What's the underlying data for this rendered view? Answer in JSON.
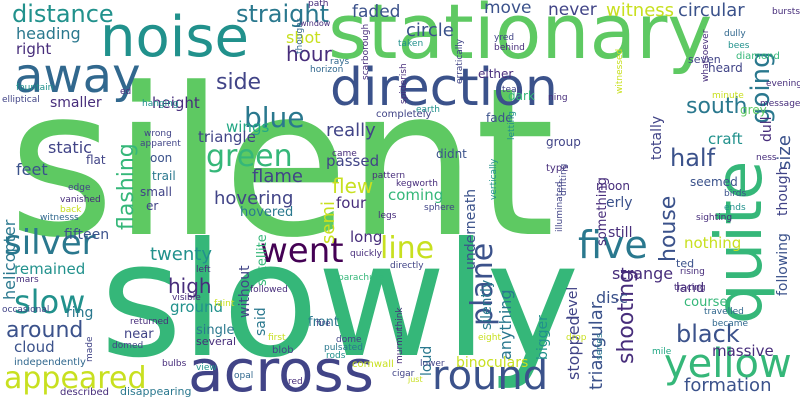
{
  "colors": {
    "green_light": "#5ec962",
    "green_mid": "#35b779",
    "teal": "#21918c",
    "teal_blue": "#2a788e",
    "blue": "#31688e",
    "indigo": "#3b528b",
    "navy": "#414487",
    "purple": "#472d7b",
    "purple_dark": "#440154",
    "yellow": "#c8e020",
    "yellow_bright": "#fde725",
    "green_aqua": "#22a884",
    "lime": "#90d743"
  },
  "words": {
    "silent": "silent",
    "slowly": "slowly",
    "stationary": "stationary",
    "noise": "noise",
    "away": "away",
    "direction": "direction",
    "quite": "quite",
    "across": "across",
    "round": "round",
    "yellow": "yellow",
    "appeared": "appeared",
    "went": "went",
    "five": "five",
    "silver": "silver",
    "green": "green",
    "blue": "blue",
    "slow": "slow",
    "plane": "plane",
    "distance": "distance",
    "straight": "straight",
    "hour": "hour",
    "side": "side",
    "south": "south",
    "going": "going",
    "half": "half",
    "house": "house",
    "black": "black",
    "formation": "formation",
    "line": "line",
    "flashing": "flashing",
    "around": "around",
    "high": "high",
    "twenty": "twenty",
    "shooting": "shooting",
    "triangular": "triangular",
    "flame": "flame",
    "really": "really",
    "flew": "flew",
    "hovering": "hovering",
    "witness": "witness",
    "circular": "circular",
    "circle": "circle",
    "faded": "faded",
    "move": "move",
    "never": "never",
    "heading": "heading",
    "right": "right",
    "smaller": "smaller",
    "shot": "shot",
    "wings": "wings",
    "height": "height",
    "triangle": "triangle",
    "static": "static",
    "feet": "feet",
    "helicopter": "helicopter",
    "remained": "remained",
    "fifteen": "fifteen",
    "ring": "ring",
    "cloud": "cloud",
    "ground": "ground",
    "strange": "strange",
    "disc": "disc",
    "nothing": "nothing",
    "size": "size",
    "dull": "dull",
    "craft": "craft",
    "coming": "coming",
    "passed": "passed",
    "four": "four",
    "long": "long",
    "still": "still",
    "anything": "anything",
    "bigger": "bigger",
    "stopped": "stopped",
    "loud": "loud",
    "massive": "massive",
    "course": "course",
    "binoculars": "binoculars",
    "land": "land",
    "front": "front",
    "single": "single",
    "near": "near",
    "several": "several",
    "hovered": "hovered",
    "small": "small",
    "trail": "trail",
    "flat": "flat",
    "moon": "moon",
    "seemed": "seemed",
    "erly": "erly",
    "ted": "ted",
    "semi": "semi",
    "oon": "oon",
    "er": "er",
    "said": "said",
    "without": "without",
    "satellite": "satellite",
    "underneath": "underneath",
    "something": "something",
    "silently": "silently",
    "level": "level",
    "group": "group",
    "didnt": "didnt",
    "fade": "fade",
    "totally": "totally",
    "house2": "heard",
    "dark": "dark",
    "either": "either",
    "seven": "seven",
    "diamond": "diamond",
    "bees": "bees",
    "dully": "dully",
    "whatsoever": "whatsoever",
    "bursts": "bursts",
    "evening": "evening",
    "message": "message",
    "minute": "minute",
    "ness": "ness",
    "birds": "birds",
    "ends": "ends",
    "though": "though",
    "following": "following",
    "grey": "grey",
    "sighting": "sighting",
    "rising": "rising",
    "tracing": "tracing",
    "travelled": "travelled",
    "became": "became",
    "mile": "mile",
    "series": "series",
    "drop": "drop",
    "just": "just",
    "murmur": "murmur",
    "lower": "lower",
    "eight": "eight",
    "cigar": "cigar",
    "cornwall": "cornwall",
    "rods": "rods",
    "dome": "dome",
    "fire": "fire",
    "pulsated": "pulsated",
    "blob": "blob",
    "first": "first",
    "red": "red",
    "opal": "opal",
    "followed": "followed",
    "visible": "visible",
    "faint": "faint",
    "returned": "returned",
    "domed": "domed",
    "bulbs": "bulbs",
    "view": "view",
    "disappearing": "disappearing",
    "described": "described",
    "independently": "independently",
    "made": "made",
    "occasional": "occasional",
    "mars": "mars",
    "vanished": "vanished",
    "back": "back",
    "witnessw": "witnesss",
    "edge": "edge",
    "apparent": "apparent",
    "wrong": "wrong",
    "elliptical": "elliptical",
    "hanging": "hanging",
    "fountain": "fountain",
    "ed": "ed",
    "thought": "thought",
    "path": "path",
    "trail2": "trail",
    "scarborough": "scarborough",
    "spiderish": "spiderish",
    "horizon": "horizon",
    "rays": "rays",
    "window": "window",
    "taken": "taken",
    "yred": "yred",
    "behind": "behind",
    "erratically": "erratically",
    "witnessed": "witnessed",
    "tear": "tear",
    "ning": "ning",
    "earth": "earth",
    "completely": "completely",
    "letting": "letting",
    "type": "type",
    "drifting": "drifting",
    "vertically": "vertically",
    "illuminated": "illuminated",
    "legs": "legs",
    "sphere": "sphere",
    "kegworth": "kegworth",
    "quickly": "quickly",
    "directly": "directly",
    "parachute": "parachute",
    "left": "left",
    "think": "think",
    "came": "came",
    "pattern": "pattern"
  }
}
